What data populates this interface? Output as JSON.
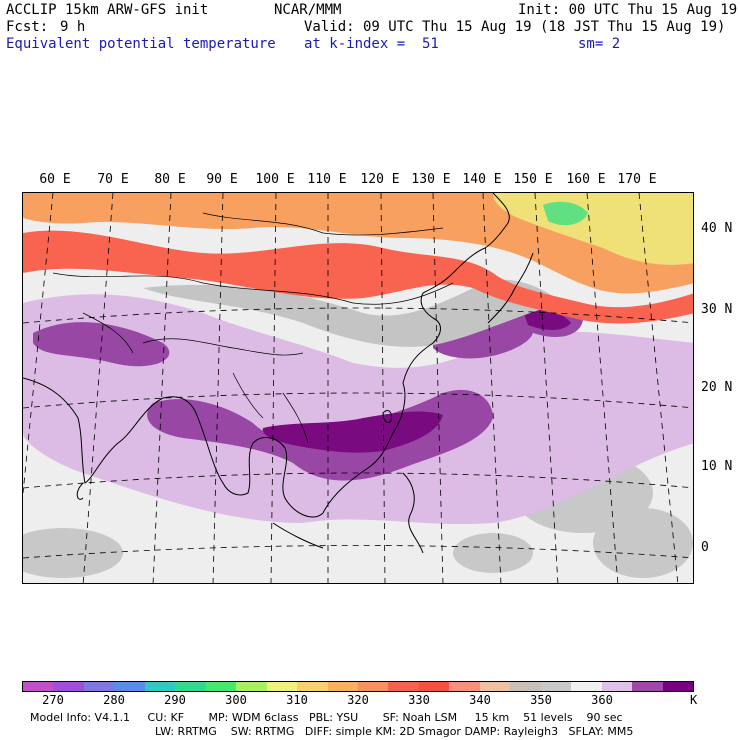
{
  "header": {
    "model": "ACCLIP 15km ARW-GFS init",
    "org": "NCAR/MMM",
    "init": "Init: 00 UTC Thu 15 Aug 19",
    "fcst_label": "Fcst:",
    "fcst_value": "9 h",
    "valid": "Valid: 09 UTC Thu 15 Aug 19 (18 JST Thu 15 Aug 19)",
    "field": "Equivalent potential temperature",
    "level": "at k-index =  51",
    "smooth": "sm= 2"
  },
  "map": {
    "lon_labels": [
      "60 E",
      "70 E",
      "80 E",
      "90 E",
      "100 E",
      "110 E",
      "120 E",
      "130 E",
      "140 E",
      "150 E",
      "160 E",
      "170 E"
    ],
    "lat_labels": [
      "40 N",
      "30 N",
      "20 N",
      "10 N",
      "0"
    ]
  },
  "colorbar": {
    "colors": [
      "#c050c8",
      "#a050d8",
      "#8078e0",
      "#5a8ce8",
      "#30c8c0",
      "#30d890",
      "#48e870",
      "#a8f060",
      "#f0f080",
      "#f8d070",
      "#f8b060",
      "#f89060",
      "#f86050",
      "#f85040",
      "#f89080",
      "#f0c0a0",
      "#c8c0b8",
      "#c8c8c8",
      "#f0f0f0",
      "#e0c0e8",
      "#a048a8",
      "#780080"
    ],
    "ticks": [
      "270",
      "280",
      "290",
      "300",
      "310",
      "320",
      "330",
      "340",
      "350",
      "360"
    ],
    "unit": "K"
  },
  "footer": {
    "line1": "Model Info: V4.1.1     CU: KF       MP: WDM 6class   PBL: YSU       SF: Noah LSM     15 km    51 levels    90 sec",
    "line2": "LW: RRTMG    SW: RRTMG   DIFF: simple KM: 2D Smagor DAMP: Rayleigh3   SFLAY: MM5"
  }
}
